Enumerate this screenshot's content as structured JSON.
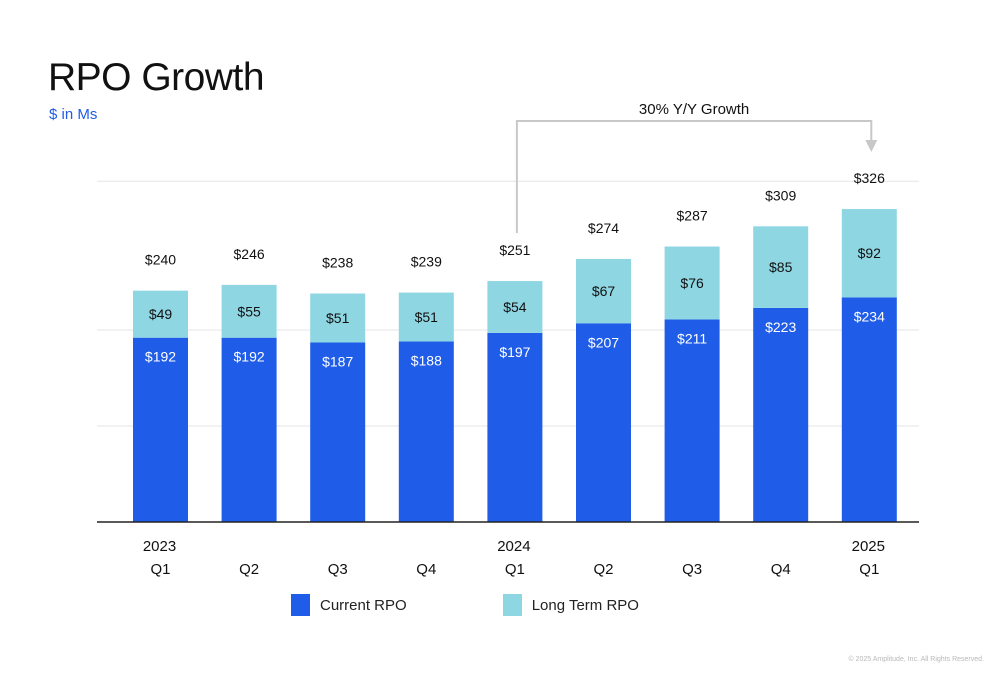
{
  "title": "RPO Growth",
  "subtitle": "$ in Ms",
  "annotation": "30% Y/Y Growth",
  "copyright": "© 2025 Amplitude, Inc. All Rights Reserved.",
  "colors": {
    "current": "#1f5ce8",
    "long_term": "#8fd6e3",
    "bracket": "#c8c8c8",
    "axis": "#222222",
    "grid": "#e6e6e6"
  },
  "chart_data": {
    "type": "bar",
    "stacked": true,
    "categories": [
      "Q1",
      "Q2",
      "Q3",
      "Q4",
      "Q1",
      "Q2",
      "Q3",
      "Q4",
      "Q1"
    ],
    "years": [
      "2023",
      "",
      "",
      "",
      "2024",
      "",
      "",
      "",
      "2025"
    ],
    "totals": [
      "$240",
      "$246",
      "$238",
      "$239",
      "$251",
      "$274",
      "$287",
      "$309",
      "$326"
    ],
    "series": [
      {
        "name": "Current RPO",
        "values": [
          192,
          192,
          187,
          188,
          197,
          207,
          211,
          223,
          234
        ],
        "labels": [
          "$192",
          "$192",
          "$187",
          "$188",
          "$197",
          "$207",
          "$211",
          "$223",
          "$234"
        ]
      },
      {
        "name": "Long Term RPO",
        "values": [
          49,
          55,
          51,
          51,
          54,
          67,
          76,
          85,
          92
        ],
        "labels": [
          "$49",
          "$55",
          "$51",
          "$51",
          "$54",
          "$67",
          "$76",
          "$85",
          "$92"
        ]
      }
    ],
    "ylim": [
      0,
      350
    ],
    "grid": true,
    "legend": "bottom"
  }
}
